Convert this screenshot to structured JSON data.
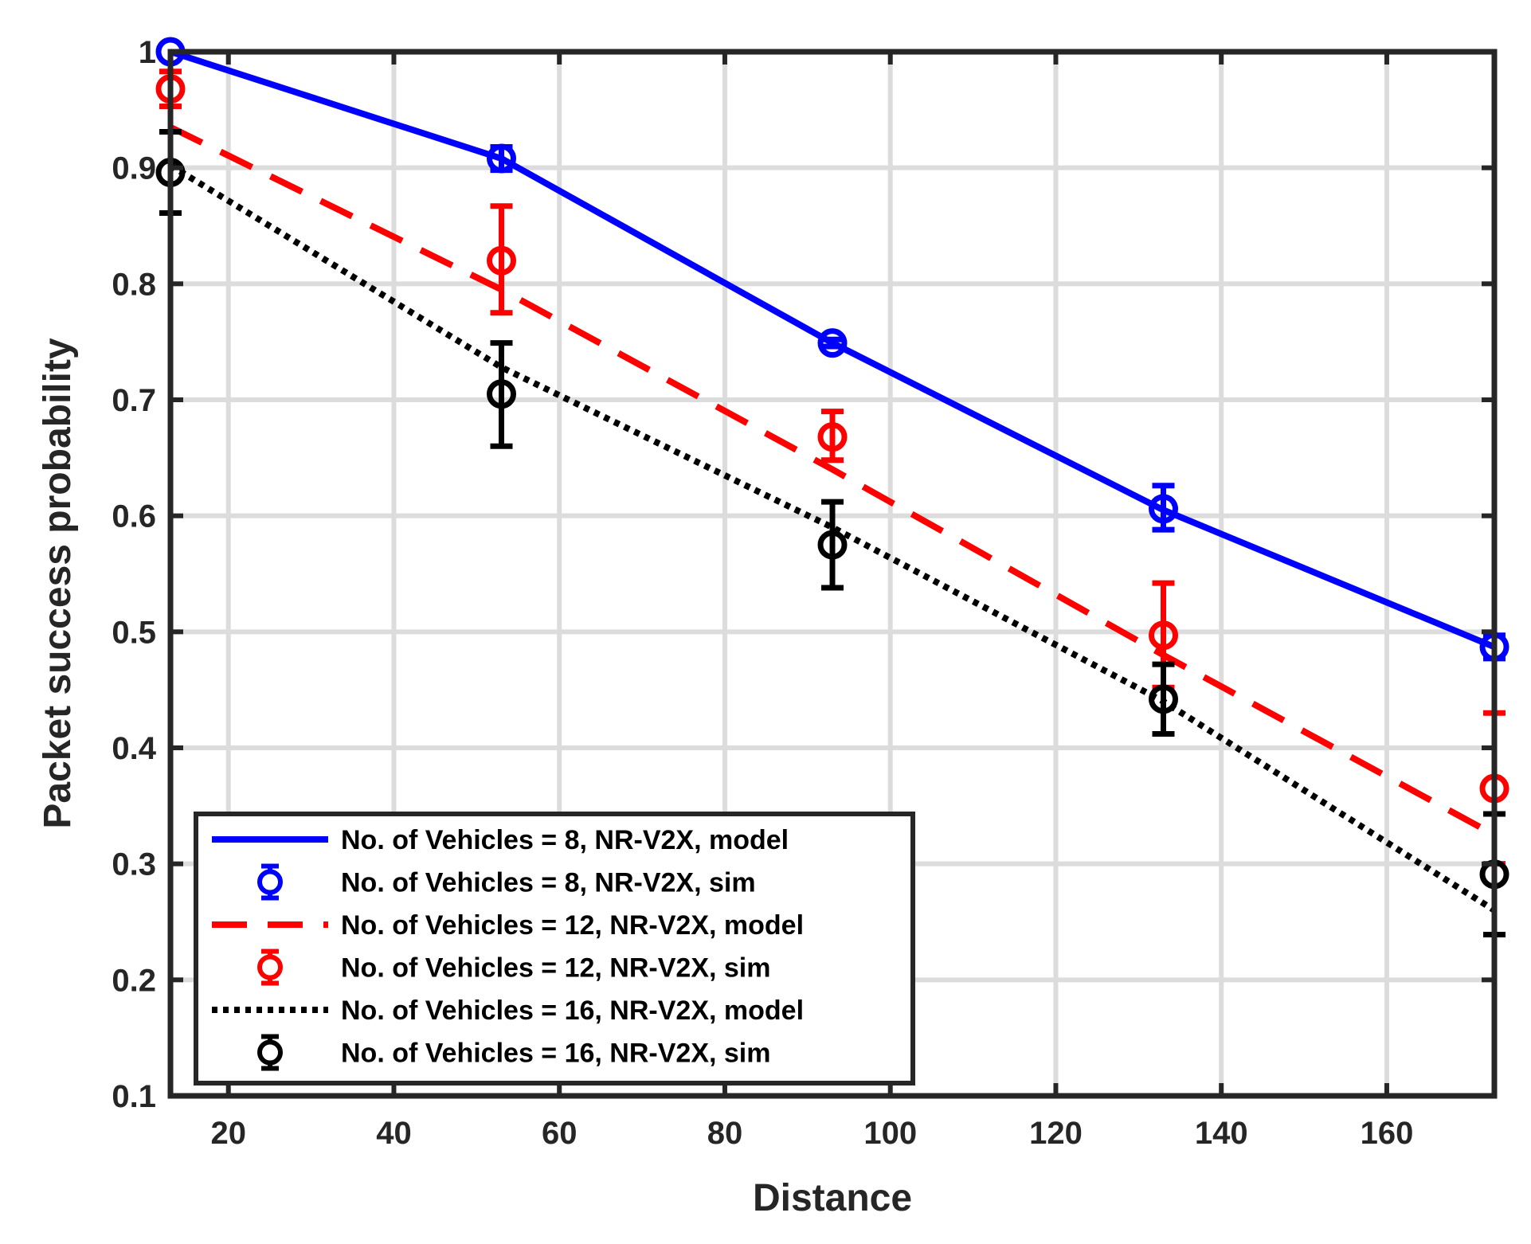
{
  "chart_data": {
    "type": "line",
    "xlabel": "Distance",
    "ylabel": "Packet success probability",
    "xlim": [
      13,
      173
    ],
    "ylim": [
      0.1,
      1.0
    ],
    "xticks": [
      20,
      40,
      60,
      80,
      100,
      120,
      140,
      160
    ],
    "yticks": [
      0.1,
      0.2,
      0.3,
      0.4,
      0.5,
      0.6,
      0.7,
      0.8,
      0.9,
      1.0
    ],
    "xtick_labels": [
      "20",
      "40",
      "60",
      "80",
      "100",
      "120",
      "140",
      "160"
    ],
    "ytick_labels": [
      "0.1",
      "0.2",
      "0.3",
      "0.4",
      "0.5",
      "0.6",
      "0.7",
      "0.8",
      "0.9",
      "1"
    ],
    "grid": true,
    "legend_position": "bottom-left",
    "series": [
      {
        "name": "No. of Vehicles = 8, NR-V2X, model",
        "kind": "line",
        "style": "solid",
        "color": "#0000ff",
        "x": [
          13,
          53,
          93,
          133,
          173
        ],
        "y": [
          1.0,
          0.908,
          0.749,
          0.605,
          0.487
        ]
      },
      {
        "name": "No. of Vehicles = 8, NR-V2X, sim",
        "kind": "errorbar",
        "color": "#0000ff",
        "x": [
          13,
          53,
          93,
          133,
          173
        ],
        "y": [
          1.0,
          0.908,
          0.749,
          0.606,
          0.487
        ],
        "err_low": [
          0.0,
          0.01,
          0.003,
          0.018,
          0.01
        ],
        "err_high": [
          0.0,
          0.01,
          0.003,
          0.02,
          0.01
        ]
      },
      {
        "name": "No. of Vehicles = 12, NR-V2X, model",
        "kind": "line",
        "style": "dashed",
        "color": "#ff0000",
        "x": [
          13,
          53,
          93,
          133,
          173
        ],
        "y": [
          0.935,
          0.795,
          0.64,
          0.48,
          0.325
        ]
      },
      {
        "name": "No. of Vehicles = 12, NR-V2X, sim",
        "kind": "errorbar",
        "color": "#ff0000",
        "x": [
          13,
          53,
          93,
          133,
          173
        ],
        "y": [
          0.968,
          0.82,
          0.668,
          0.497,
          0.365
        ],
        "err_low": [
          0.015,
          0.045,
          0.02,
          0.045,
          0.065
        ],
        "err_high": [
          0.015,
          0.047,
          0.022,
          0.045,
          0.065
        ]
      },
      {
        "name": "No. of Vehicles = 16, NR-V2X, model",
        "kind": "line",
        "style": "dotted",
        "color": "#000000",
        "x": [
          13,
          53,
          93,
          133,
          173
        ],
        "y": [
          0.902,
          0.728,
          0.59,
          0.44,
          0.26
        ]
      },
      {
        "name": "No. of Vehicles = 16, NR-V2X, sim",
        "kind": "errorbar",
        "color": "#000000",
        "x": [
          13,
          53,
          93,
          133,
          173
        ],
        "y": [
          0.896,
          0.705,
          0.575,
          0.442,
          0.291
        ],
        "err_low": [
          0.035,
          0.045,
          0.037,
          0.03,
          0.052
        ],
        "err_high": [
          0.035,
          0.044,
          0.037,
          0.03,
          0.052
        ]
      }
    ]
  }
}
